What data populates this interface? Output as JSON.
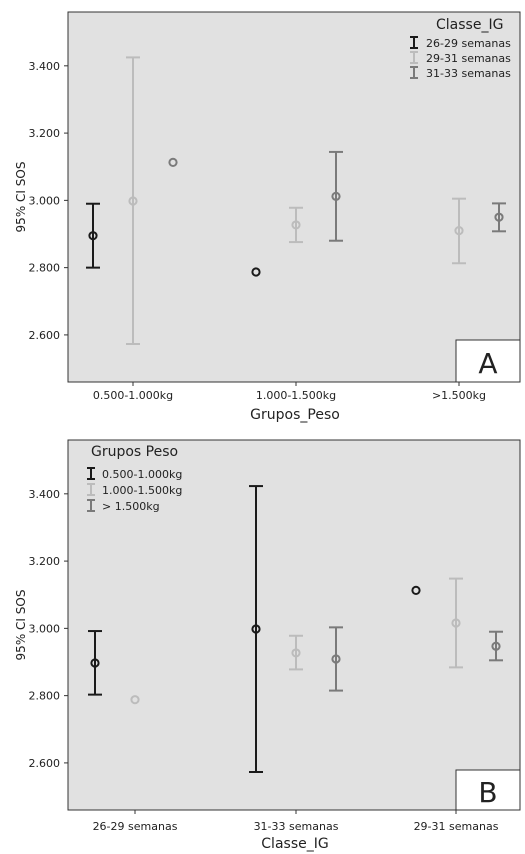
{
  "chart_data": [
    {
      "panel_label": "A",
      "type": "errorbar",
      "xlabel": "Grupos_Peso",
      "ylabel": "95% CI SOS",
      "categories": [
        "0.500-1.000kg",
        "1.000-1.500kg",
        ">1.500kg"
      ],
      "ylim": [
        2.46,
        3.56
      ],
      "yticks": [
        "2.600",
        "2.800",
        "3.000",
        "3.200",
        "3.400"
      ],
      "legend_title": "Classe_IG",
      "legend_position": "top-right",
      "series": [
        {
          "name": "26-29 semanas",
          "color": "#1a1a1a",
          "means": [
            2.895,
            2.787,
            null
          ],
          "lower": [
            2.8,
            null,
            null
          ],
          "upper": [
            2.99,
            null,
            null
          ]
        },
        {
          "name": "29-31 semanas",
          "color": "#bcbcbc",
          "means": [
            2.998,
            2.927,
            2.91
          ],
          "lower": [
            2.573,
            2.876,
            2.813
          ],
          "upper": [
            3.425,
            2.978,
            3.005
          ]
        },
        {
          "name": "31-33 semanas",
          "color": "#7a7a7a",
          "means": [
            3.113,
            3.012,
            2.95
          ],
          "lower": [
            null,
            2.88,
            2.908
          ],
          "upper": [
            null,
            3.144,
            2.991
          ]
        }
      ]
    },
    {
      "panel_label": "B",
      "type": "errorbar",
      "xlabel": "Classe_IG",
      "ylabel": "95% CI SOS",
      "categories": [
        "26-29 semanas",
        "31-33 semanas",
        "29-31 semanas"
      ],
      "ylim": [
        2.46,
        3.56
      ],
      "yticks": [
        "2.600",
        "2.800",
        "3.000",
        "3.200",
        "3.400"
      ],
      "legend_title": "Grupos Peso",
      "legend_position": "top-left",
      "series": [
        {
          "name": "0.500-1.000kg",
          "color": "#1a1a1a",
          "means": [
            2.897,
            2.998,
            3.113
          ],
          "lower": [
            2.803,
            2.573,
            null
          ],
          "upper": [
            2.992,
            3.423,
            null
          ]
        },
        {
          "name": "1.000-1.500kg",
          "color": "#bcbcbc",
          "means": [
            2.788,
            2.927,
            3.016
          ],
          "lower": [
            null,
            2.878,
            2.884
          ],
          "upper": [
            null,
            2.978,
            3.148
          ]
        },
        {
          "name": "> 1.500kg",
          "color": "#7a7a7a",
          "means": [
            null,
            2.909,
            2.947
          ],
          "lower": [
            null,
            2.815,
            2.905
          ],
          "upper": [
            null,
            3.003,
            2.99
          ]
        }
      ]
    }
  ]
}
